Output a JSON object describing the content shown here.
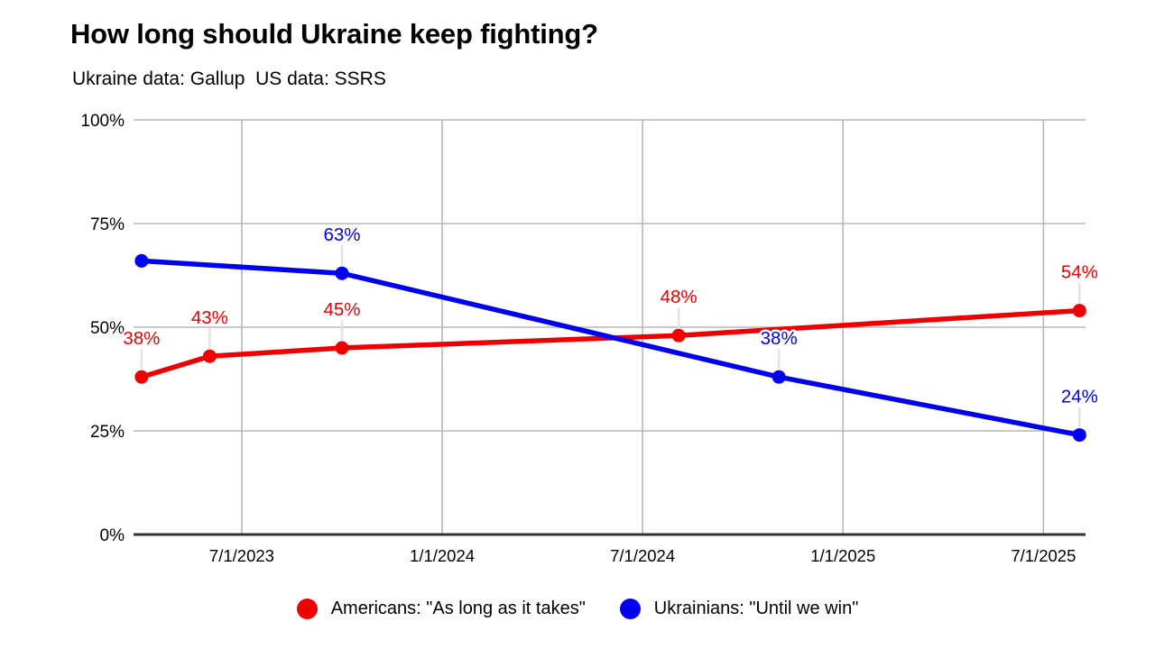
{
  "page": {
    "title": "How long should Ukraine keep fighting?",
    "subtitle": "Ukraine data: Gallup  US data: SSRS",
    "background": "#ffffff"
  },
  "chart_data": {
    "type": "line",
    "title": "How long should Ukraine keep fighting?",
    "subtitle": "Ukraine data: Gallup  US data: SSRS",
    "grid": true,
    "legend_position": "bottom",
    "x_axis": {
      "range": [
        2023.23,
        2025.605
      ],
      "ticks": [
        {
          "label": "7/1/2023",
          "value": 2023.5
        },
        {
          "label": "1/1/2024",
          "value": 2024.0
        },
        {
          "label": "7/1/2024",
          "value": 2024.5
        },
        {
          "label": "1/1/2025",
          "value": 2025.0
        },
        {
          "label": "7/1/2025",
          "value": 2025.5
        }
      ]
    },
    "y_axis": {
      "range": [
        0,
        100
      ],
      "ticks": [
        {
          "label": "0%",
          "value": 0
        },
        {
          "label": "25%",
          "value": 25
        },
        {
          "label": "50%",
          "value": 50
        },
        {
          "label": "75%",
          "value": 75
        },
        {
          "label": "100%",
          "value": 100
        }
      ]
    },
    "series": [
      {
        "name": "Americans: \"As long as it takes\"",
        "color": "#ee0000",
        "points": [
          {
            "x": 2023.25,
            "y": 38,
            "label": "38%"
          },
          {
            "x": 2023.42,
            "y": 43,
            "label": "43%"
          },
          {
            "x": 2023.75,
            "y": 45,
            "label": "45%"
          },
          {
            "x": 2024.59,
            "y": 48,
            "label": "48%"
          },
          {
            "x": 2025.59,
            "y": 54,
            "label": "54%"
          }
        ]
      },
      {
        "name": "Ukrainians: \"Until we win\"",
        "color": "#0000ee",
        "points": [
          {
            "x": 2023.25,
            "y": 66,
            "label": ""
          },
          {
            "x": 2023.75,
            "y": 63,
            "label": "63%"
          },
          {
            "x": 2024.84,
            "y": 38,
            "label": "38%"
          },
          {
            "x": 2025.59,
            "y": 24,
            "label": "24%"
          }
        ]
      }
    ],
    "colors": {
      "gridline": "#b7b7b7",
      "axis_line": "#333333",
      "leader_line": "#e3e3e3",
      "label_halo": "#ffffff",
      "tick_text": "#000000"
    }
  }
}
